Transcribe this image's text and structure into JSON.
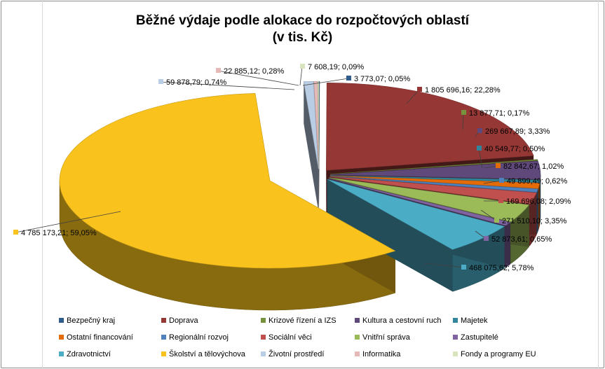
{
  "chart_data": {
    "type": "pie",
    "title_line1": "Běžné výdaje podle alokace do rozpočtových oblastí",
    "title_line2": "(v tis. Kč)",
    "legend_placement": "bottom",
    "slices": [
      {
        "name": "Bezpečný kraj",
        "value": 3773.07,
        "label": "3 773,07; 0,05%",
        "color": "#2f5b8d"
      },
      {
        "name": "Doprava",
        "value": 1805696.16,
        "label": "1 805 696,16; 22,28%",
        "color": "#953735"
      },
      {
        "name": "Krizové řízení a IZS",
        "value": 13877.71,
        "label": "13 877,71; 0,17%",
        "color": "#76923c"
      },
      {
        "name": "Kultura a cestovní ruch",
        "value": 269667.89,
        "label": "269 667,89; 3,33%",
        "color": "#5f497a"
      },
      {
        "name": "Majetek",
        "value": 40549.77,
        "label": "40 549,77; 0,50%",
        "color": "#31859c"
      },
      {
        "name": "Ostatní financování",
        "value": 82842.67,
        "label": "82 842,67; 1,02%",
        "color": "#e36c09"
      },
      {
        "name": "Regionální rozvoj",
        "value": 49899.49,
        "label": "49 899,49; 0,62%",
        "color": "#4f81bd"
      },
      {
        "name": "Sociální věci",
        "value": 169696.08,
        "label": "169 696,08; 2,09%",
        "color": "#c0504d"
      },
      {
        "name": "Vnitřní správa",
        "value": 271510.1,
        "label": "271 510,10; 3,35%",
        "color": "#9bbb59"
      },
      {
        "name": "Zastupitelé",
        "value": 52873.61,
        "label": "52 873,61; 0,65%",
        "color": "#8064a2"
      },
      {
        "name": "Zdravotnictví",
        "value": 468075.62,
        "label": "468 075,62; 5,78%",
        "color": "#4bacc6"
      },
      {
        "name": "Školství a tělovýchova",
        "value": 4785173.21,
        "label": "4 785 173,21; 59,05%",
        "color": "#f9c21c"
      },
      {
        "name": "Životní prostředí",
        "value": 59878.79,
        "label": "59 878,79; 0,74%",
        "color": "#b9cde5"
      },
      {
        "name": "Informatika",
        "value": 22885.12,
        "label": "22 885,12; 0,28%",
        "color": "#e6b9b8"
      },
      {
        "name": "Fondy a programy EU",
        "value": 7608.19,
        "label": "7 608,19; 0,09%",
        "color": "#d7e4bd"
      }
    ]
  }
}
